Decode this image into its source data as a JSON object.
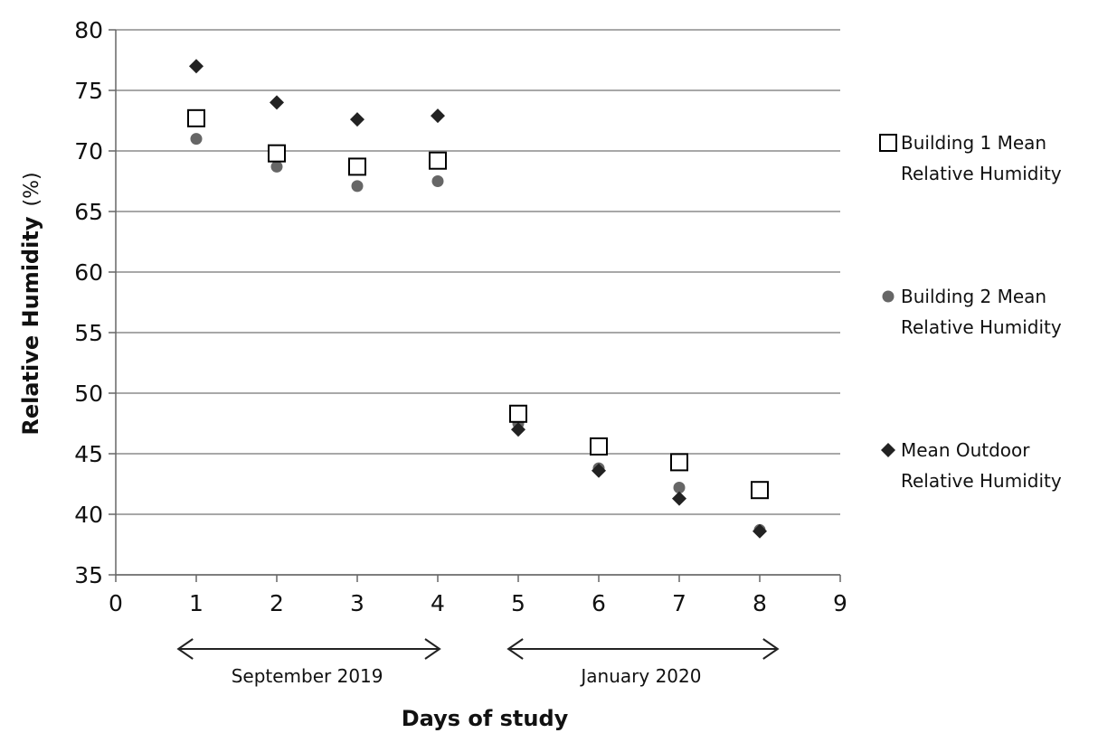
{
  "chart_data": {
    "type": "scatter",
    "title": "",
    "xlabel": "Days of study",
    "ylabel_bold": "Relative Humidity",
    "ylabel_unit": "(%)",
    "xlim": [
      0,
      9
    ],
    "ylim": [
      35,
      80
    ],
    "xticks": [
      0,
      1,
      2,
      3,
      4,
      5,
      6,
      7,
      8,
      9
    ],
    "yticks": [
      35,
      40,
      45,
      50,
      55,
      60,
      65,
      70,
      75,
      80
    ],
    "grid": "horizontal",
    "legend_position": "right",
    "series": [
      {
        "name_line1": "Building 1 Mean",
        "name_line2": "Relative Humidity",
        "marker": "square-open",
        "color": "#000000",
        "x": [
          1,
          2,
          3,
          4,
          5,
          6,
          7,
          8
        ],
        "y": [
          72.7,
          69.8,
          68.7,
          69.2,
          48.3,
          45.6,
          44.3,
          42.0
        ]
      },
      {
        "name_line1": "Building 2 Mean",
        "name_line2": "Relative Humidity",
        "marker": "circle",
        "color": "#666666",
        "x": [
          1,
          2,
          3,
          4,
          5,
          6,
          7,
          8
        ],
        "y": [
          71.0,
          68.7,
          67.1,
          67.5,
          47.5,
          43.8,
          42.2,
          38.7
        ]
      },
      {
        "name_line1": "Mean Outdoor",
        "name_line2": "Relative Humidity",
        "marker": "diamond",
        "color": "#222222",
        "x": [
          1,
          2,
          3,
          4,
          5,
          6,
          7,
          8
        ],
        "y": [
          77.0,
          74.0,
          72.6,
          72.9,
          47.0,
          43.6,
          41.3,
          38.6
        ]
      }
    ],
    "periods": [
      {
        "label": "September 2019",
        "from": 0.8,
        "to": 4.0
      },
      {
        "label": "January 2020",
        "from": 4.9,
        "to": 8.2
      }
    ]
  }
}
